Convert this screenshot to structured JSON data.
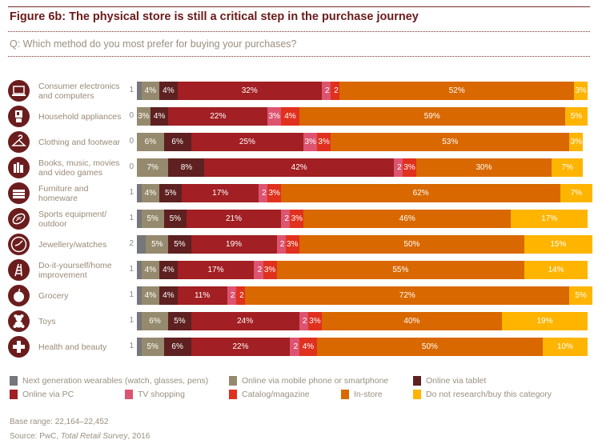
{
  "header": {
    "title": "Figure 6b: The physical store is still a critical step in the purchase journey",
    "question": "Q: Which method do you most prefer for buying your purchases?"
  },
  "footer": {
    "base_range": "Base range: 22,164–22,452",
    "source_prefix": "Source: PwC, ",
    "source_title": "Total Retail Survey",
    "source_suffix": ", 2016"
  },
  "chart_data": {
    "type": "bar",
    "orientation": "horizontal",
    "stacked": true,
    "title": "Figure 6b: The physical store is still a critical step in the purchase journey",
    "subtitle": "Q: Which method do you most prefer for buying your purchases?",
    "xlabel": "",
    "ylabel": "",
    "unit": "%",
    "xlim": [
      0,
      100
    ],
    "grid": false,
    "legend_position": "bottom",
    "categories": [
      {
        "label": "Consumer electronics and computers",
        "lines": [
          "Consumer electronics",
          "and computers"
        ],
        "icon": "laptop-icon"
      },
      {
        "label": "Household appliances",
        "lines": [
          "Household appliances"
        ],
        "icon": "blender-icon"
      },
      {
        "label": "Clothing and footwear",
        "lines": [
          "Clothing and footwear"
        ],
        "icon": "hanger-icon"
      },
      {
        "label": "Books, music, movies and video games",
        "lines": [
          "Books, music, movies",
          "and video games"
        ],
        "icon": "books-icon"
      },
      {
        "label": "Furniture and homeware",
        "lines": [
          "Furniture and",
          "homeware"
        ],
        "icon": "bed-icon"
      },
      {
        "label": "Sports equipment/outdoor",
        "lines": [
          "Sports equipment/",
          "outdoor"
        ],
        "icon": "football-icon"
      },
      {
        "label": "Jewellery/watches",
        "lines": [
          "Jewellery/watches"
        ],
        "icon": "clock-icon"
      },
      {
        "label": "Do-it-yourself/home improvement",
        "lines": [
          "Do-it-yourself/home",
          "improvement"
        ],
        "icon": "ladder-icon"
      },
      {
        "label": "Grocery",
        "lines": [
          "Grocery"
        ],
        "icon": "apple-icon"
      },
      {
        "label": "Toys",
        "lines": [
          "Toys"
        ],
        "icon": "teddy-bear-icon"
      },
      {
        "label": "Health and beauty",
        "lines": [
          "Health and beauty"
        ],
        "icon": "cross-icon"
      }
    ],
    "series": [
      {
        "name": "Next generation wearables (watch, glasses, pens)",
        "color": "#76777a",
        "values": [
          1,
          0,
          0,
          0,
          1,
          1,
          2,
          1,
          1,
          1,
          1
        ]
      },
      {
        "name": "Online via mobile phone or smartphone",
        "color": "#968a6e",
        "values": [
          4,
          3,
          6,
          7,
          4,
          5,
          5,
          4,
          4,
          6,
          5
        ]
      },
      {
        "name": "Online via tablet",
        "color": "#5e2020",
        "values": [
          4,
          4,
          6,
          8,
          5,
          5,
          5,
          4,
          4,
          5,
          6
        ]
      },
      {
        "name": "Online via PC",
        "color": "#a21f23",
        "values": [
          32,
          22,
          25,
          42,
          17,
          21,
          19,
          17,
          11,
          24,
          22
        ]
      },
      {
        "name": "TV shopping",
        "color": "#dc5470",
        "values": [
          2,
          3,
          3,
          2,
          2,
          2,
          2,
          2,
          2,
          2,
          2
        ]
      },
      {
        "name": "Catalog/magazine",
        "color": "#e0301e",
        "values": [
          2,
          4,
          3,
          3,
          3,
          3,
          3,
          3,
          2,
          3,
          4
        ]
      },
      {
        "name": "In-store",
        "color": "#d96800",
        "values": [
          52,
          59,
          53,
          30,
          62,
          46,
          50,
          55,
          72,
          40,
          50
        ]
      },
      {
        "name": "Do not research/buy this category",
        "color": "#ffb400",
        "values": [
          3,
          5,
          3,
          7,
          7,
          17,
          15,
          14,
          5,
          19,
          10
        ]
      }
    ],
    "data_labels": [
      [
        "1",
        "4%",
        "4%",
        "32%",
        "2",
        "2",
        "52%",
        "3%"
      ],
      [
        "0",
        "3%",
        "4%",
        "22%",
        "3%",
        "4%",
        "59%",
        "5%"
      ],
      [
        "0",
        "6%",
        "6%",
        "25%",
        "3%",
        "3%",
        "53%",
        "3%"
      ],
      [
        "0",
        "7%",
        "8%",
        "42%",
        "2",
        "3%",
        "30%",
        "7%"
      ],
      [
        "1",
        "4%",
        "5%",
        "17%",
        "2",
        "3%",
        "62%",
        "7%"
      ],
      [
        "1",
        "5%",
        "5%",
        "21%",
        "2",
        "3%",
        "46%",
        "17%"
      ],
      [
        "2",
        "5%",
        "5%",
        "19%",
        "2",
        "3%",
        "50%",
        "15%"
      ],
      [
        "1",
        "4%",
        "4%",
        "17%",
        "2",
        "3%",
        "55%",
        "14%"
      ],
      [
        "1",
        "4%",
        "4%",
        "11%",
        "2",
        "2",
        "72%",
        "5%"
      ],
      [
        "1",
        "6%",
        "5%",
        "24%",
        "2",
        "3%",
        "40%",
        "19%"
      ],
      [
        "1",
        "5%",
        "6%",
        "22%",
        "2",
        "4%",
        "50%",
        "10%"
      ]
    ]
  }
}
